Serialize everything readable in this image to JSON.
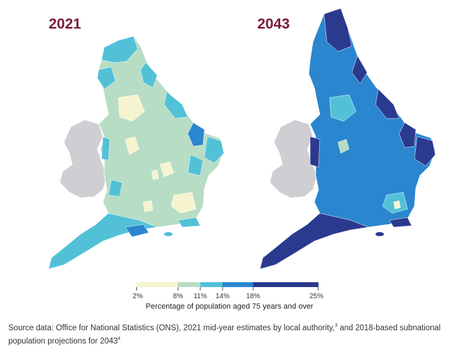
{
  "maps": [
    {
      "year": "2021"
    },
    {
      "year": "2043"
    }
  ],
  "legend": {
    "ticks": [
      "2%",
      "8%",
      "11%",
      "14%",
      "18%",
      "25%"
    ],
    "caption": "Percentage of population aged 75 years and over",
    "colors": [
      "#f6f4cf",
      "#b7ddc4",
      "#52c1d8",
      "#2a86cf",
      "#2a3a8f"
    ]
  },
  "source": {
    "text": "Source data: Office for National Statistics (ONS), 2021 mid-year estimates by local authority,",
    "ref1": "3",
    "text2": " and 2018-based subnational population projections for 2043",
    "ref2": "4"
  }
}
